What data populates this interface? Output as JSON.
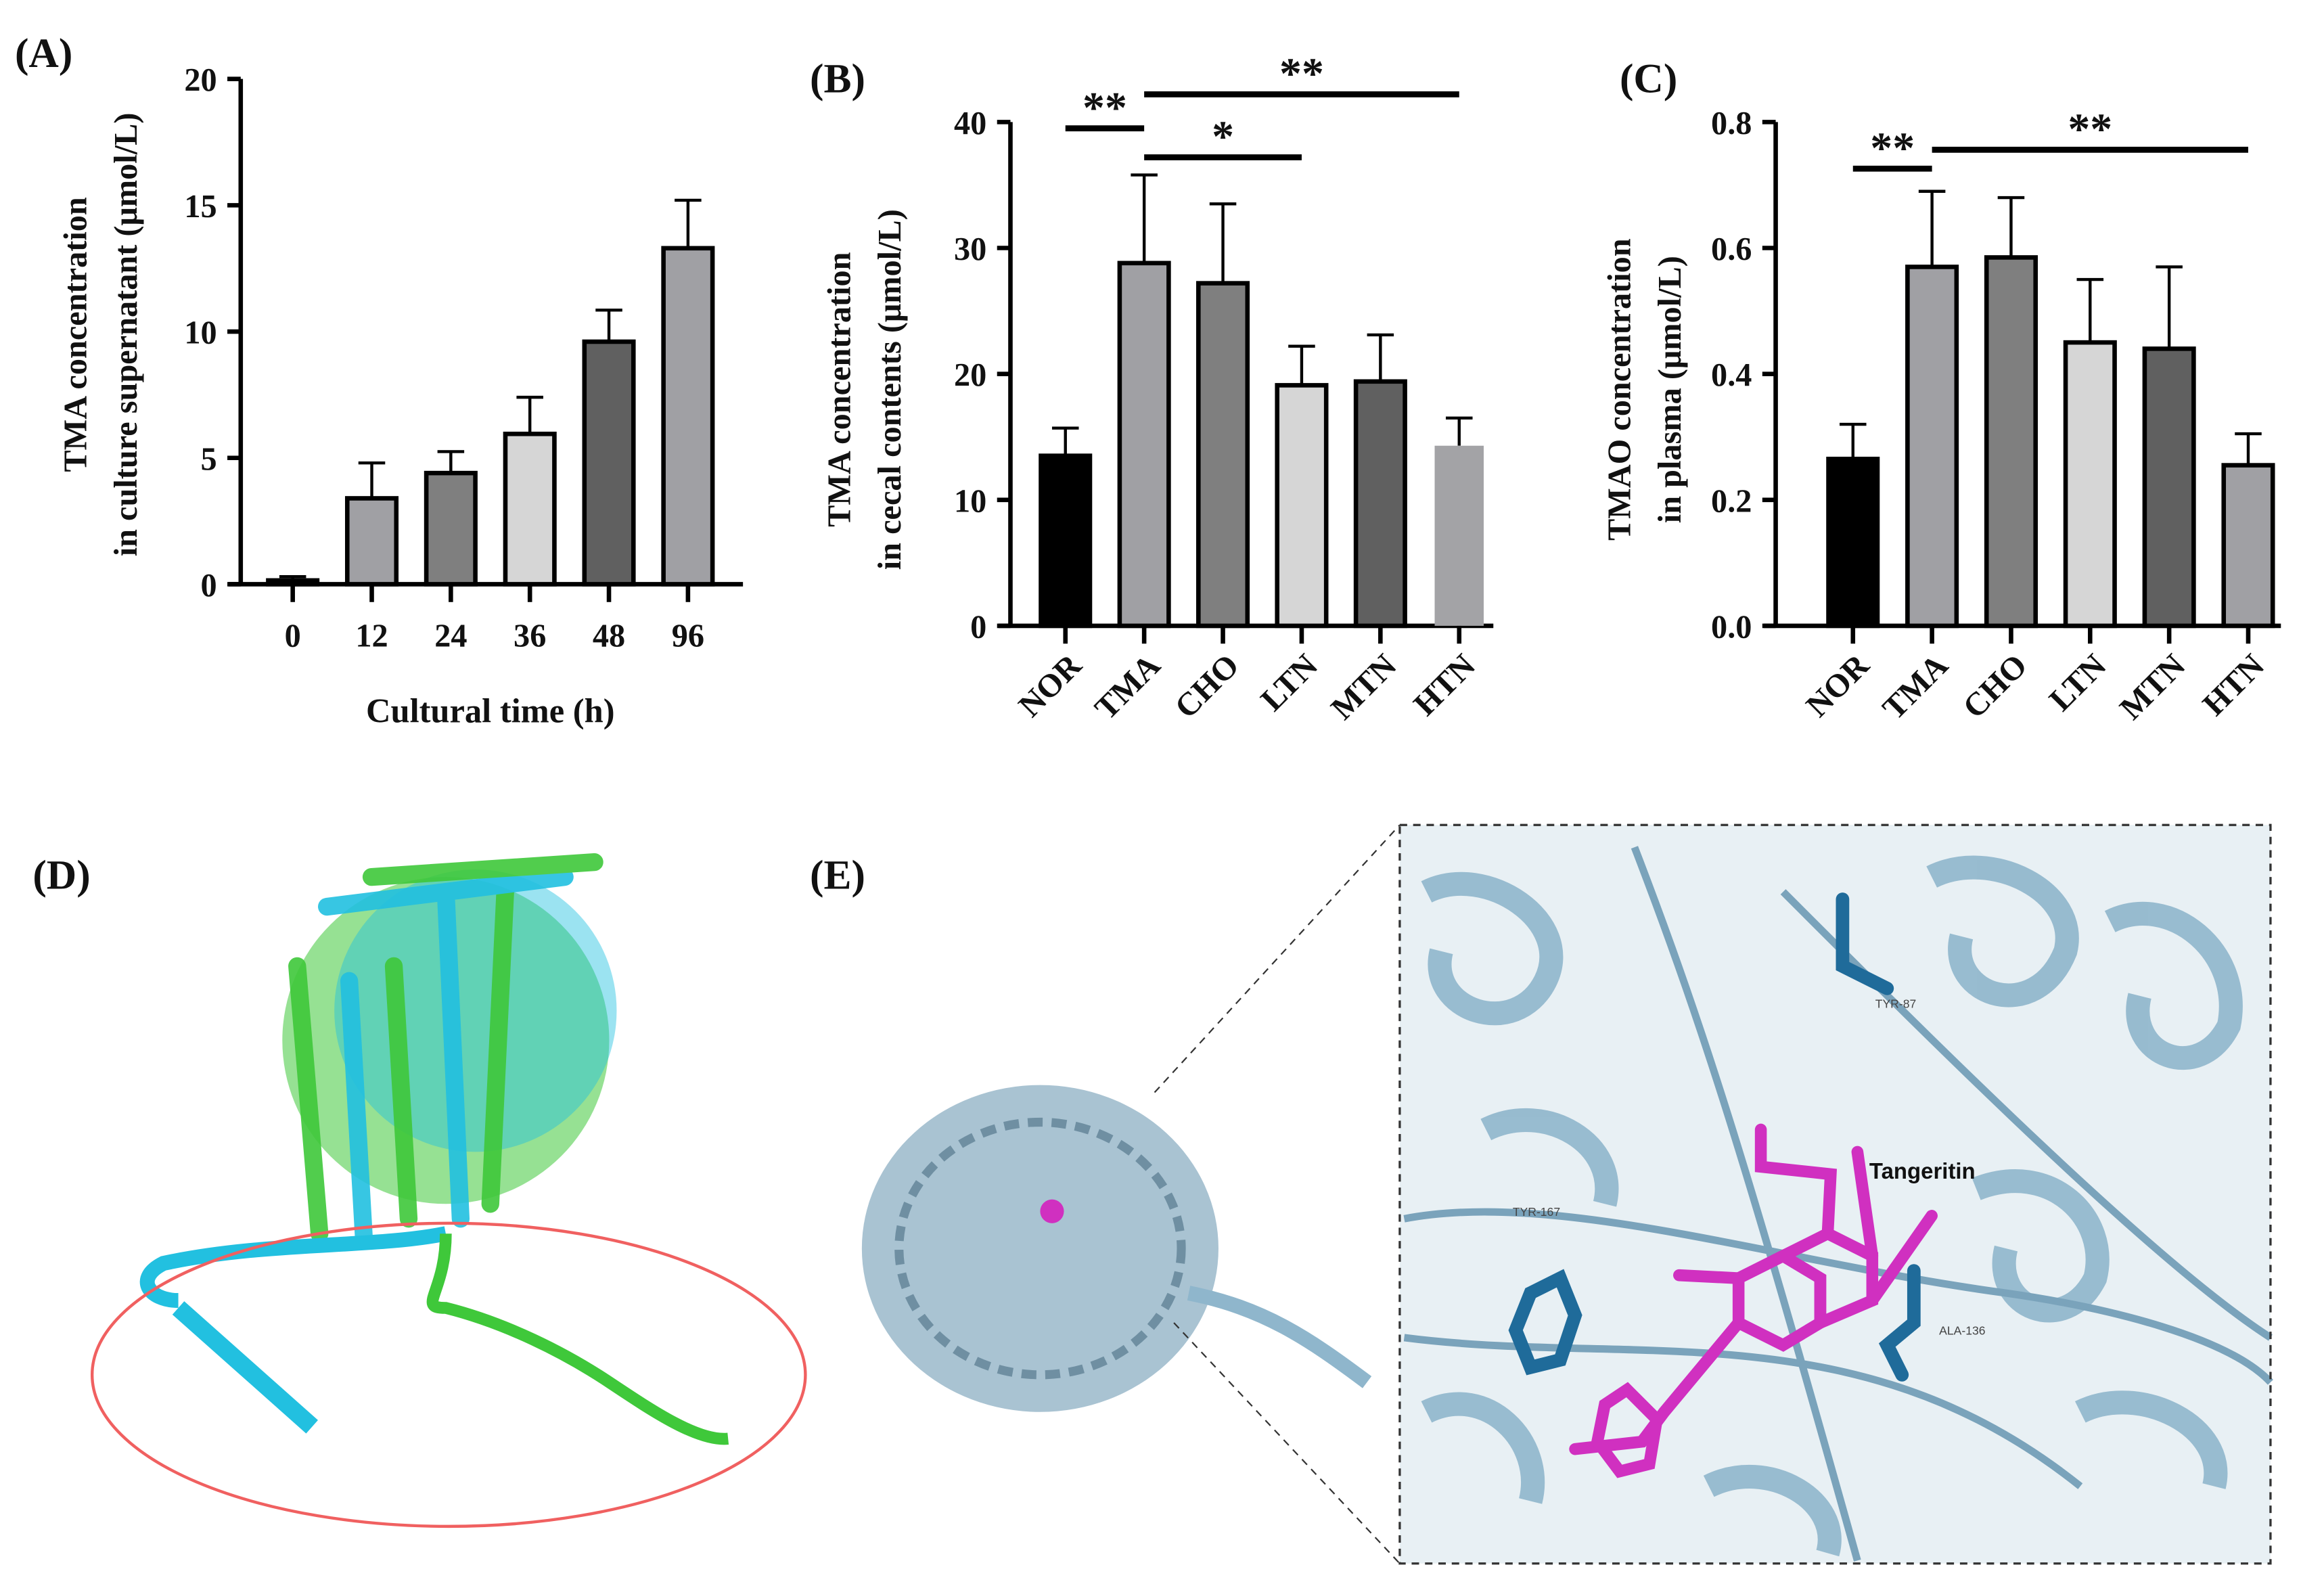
{
  "chart_data": [
    {
      "panel": "(A)",
      "type": "bar",
      "categories": [
        "0",
        "12",
        "24",
        "36",
        "48",
        "96"
      ],
      "values": [
        0.15,
        3.4,
        4.4,
        5.95,
        9.6,
        13.3
      ],
      "errors": [
        0.15,
        1.4,
        0.85,
        1.45,
        1.25,
        1.9
      ],
      "colors": [
        "#a0a0a4",
        "#a0a0a4",
        "#7f7f7f",
        "#d6d6d6",
        "#606060",
        "#a0a0a4"
      ],
      "ylabel_line1": "TMA concentration",
      "ylabel_line2": "in culture supernatant (μmol/L)",
      "xlabel": "Cultural time (h)",
      "ylim": [
        0,
        20
      ],
      "yticks": [
        "0",
        "5",
        "10",
        "15",
        "20"
      ],
      "significance": []
    },
    {
      "panel": "(B)",
      "type": "bar",
      "categories": [
        "NOR",
        "TMA",
        "CHO",
        "LTN",
        "MTN",
        "HTN"
      ],
      "values": [
        13.5,
        28.8,
        27.2,
        19.1,
        19.4,
        14.3
      ],
      "errors": [
        2.2,
        7.0,
        6.3,
        3.1,
        3.7,
        2.2
      ],
      "colors": [
        "#000000",
        "#a0a0a4",
        "#7f7f7f",
        "#d6d6d6",
        "#606060",
        "#a3a3a6"
      ],
      "ylabel_line1": "TMA concentration",
      "ylabel_line2": "in cecal contents (μmol/L)",
      "xlabel": "",
      "ylim": [
        0,
        40
      ],
      "yticks": [
        "0",
        "10",
        "20",
        "30",
        "40"
      ],
      "significance": [
        {
          "from": 0,
          "to": 1,
          "level": 39.5,
          "label": "**"
        },
        {
          "from": 1,
          "to": 5,
          "level": 42.2,
          "label": "**"
        },
        {
          "from": 1,
          "to": 3,
          "level": 37.2,
          "label": "*"
        }
      ]
    },
    {
      "panel": "(C)",
      "type": "bar",
      "categories": [
        "NOR",
        "TMA",
        "CHO",
        "LTN",
        "MTN",
        "HTN"
      ],
      "values": [
        0.265,
        0.57,
        0.585,
        0.45,
        0.44,
        0.255
      ],
      "errors": [
        0.055,
        0.12,
        0.095,
        0.1,
        0.13,
        0.05
      ],
      "colors": [
        "#000000",
        "#a0a0a4",
        "#7f7f7f",
        "#d6d6d6",
        "#606060",
        "#a0a0a4"
      ],
      "ylabel_line1": "TMAO concentration",
      "ylabel_line2": "in plasma (μmol/L)",
      "xlabel": "",
      "ylim": [
        0,
        0.8
      ],
      "yticks": [
        "0.0",
        "0.2",
        "0.4",
        "0.6",
        "0.8"
      ],
      "significance": [
        {
          "from": 0,
          "to": 1,
          "level": 0.726,
          "label": "**"
        },
        {
          "from": 1,
          "to": 5,
          "level": 0.756,
          "label": "**"
        }
      ]
    }
  ],
  "panel_d": {
    "label": "(D)",
    "colors": {
      "model1": "#22c0e0",
      "model2": "#3fc83a",
      "highlight": "#f06060"
    }
  },
  "panel_e": {
    "label": "(E)",
    "ligand_label": "Tangeritin",
    "residues": [
      "TYR-87",
      "TYR-167",
      "ALA-136"
    ],
    "colors": {
      "protein": "#8fb6cc",
      "ligand": "#d030c0",
      "residue": "#1f6b9a"
    }
  }
}
